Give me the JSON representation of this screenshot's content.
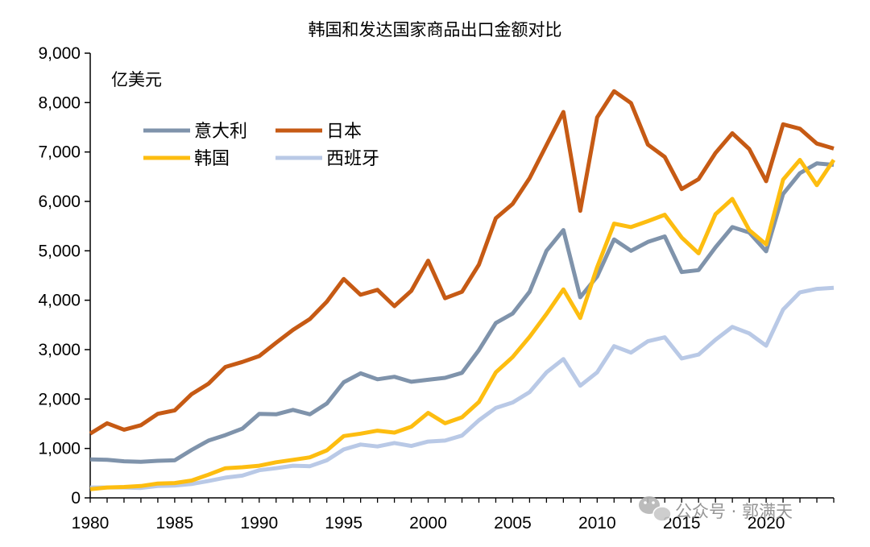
{
  "chart_data": {
    "type": "line",
    "title": "韩国和发达国家商品出口金额对比",
    "unit_label": "亿美元",
    "xlabel": "",
    "ylabel": "",
    "ylim": [
      0,
      9000
    ],
    "xlim": [
      1980,
      2024
    ],
    "yticks": [
      "0",
      "1,000",
      "2,000",
      "3,000",
      "4,000",
      "5,000",
      "6,000",
      "7,000",
      "8,000",
      "9,000"
    ],
    "ytick_values": [
      0,
      1000,
      2000,
      3000,
      4000,
      5000,
      6000,
      7000,
      8000,
      9000
    ],
    "xticks": [
      "1980",
      "1985",
      "1990",
      "1995",
      "2000",
      "2005",
      "2010",
      "2015",
      "2020"
    ],
    "xtick_values": [
      1980,
      1985,
      1990,
      1995,
      2000,
      2005,
      2010,
      2015,
      2020
    ],
    "grid": false,
    "legend_position": "top-left",
    "x": [
      1980,
      1981,
      1982,
      1983,
      1984,
      1985,
      1986,
      1987,
      1988,
      1989,
      1990,
      1991,
      1992,
      1993,
      1994,
      1995,
      1996,
      1997,
      1998,
      1999,
      2000,
      2001,
      2002,
      2003,
      2004,
      2005,
      2006,
      2007,
      2008,
      2009,
      2010,
      2011,
      2012,
      2013,
      2014,
      2015,
      2016,
      2017,
      2018,
      2019,
      2020,
      2021,
      2022,
      2023,
      2024
    ],
    "series": [
      {
        "name": "意大利",
        "color": "#7f93ab",
        "values": [
          780,
          770,
          740,
          730,
          750,
          760,
          970,
          1160,
          1270,
          1400,
          1700,
          1690,
          1780,
          1690,
          1910,
          2340,
          2520,
          2400,
          2450,
          2350,
          2390,
          2430,
          2530,
          2990,
          3540,
          3730,
          4170,
          5000,
          5420,
          4060,
          4480,
          5230,
          5000,
          5180,
          5290,
          4570,
          4610,
          5070,
          5480,
          5370,
          4990,
          6150,
          6570,
          6770,
          6740
        ]
      },
      {
        "name": "日本",
        "color": "#c65a14",
        "values": [
          1300,
          1510,
          1380,
          1470,
          1700,
          1770,
          2100,
          2310,
          2650,
          2750,
          2870,
          3140,
          3400,
          3620,
          3970,
          4430,
          4110,
          4210,
          3880,
          4190,
          4800,
          4040,
          4170,
          4720,
          5660,
          5950,
          6470,
          7140,
          7810,
          5810,
          7700,
          8230,
          7990,
          7150,
          6900,
          6250,
          6450,
          6980,
          7380,
          7060,
          6410,
          7560,
          7470,
          7170,
          7070
        ]
      },
      {
        "name": "韩国",
        "color": "#fdbd10",
        "values": [
          175,
          210,
          220,
          240,
          290,
          300,
          350,
          470,
          600,
          620,
          650,
          720,
          770,
          820,
          960,
          1250,
          1300,
          1360,
          1320,
          1440,
          1720,
          1510,
          1630,
          1940,
          2540,
          2850,
          3260,
          3720,
          4220,
          3640,
          4670,
          5550,
          5480,
          5600,
          5730,
          5270,
          4950,
          5740,
          6050,
          5420,
          5130,
          6440,
          6840,
          6330,
          6840
        ]
      },
      {
        "name": "西班牙",
        "color": "#b9c9e6",
        "values": [
          210,
          210,
          210,
          200,
          240,
          250,
          280,
          340,
          410,
          450,
          560,
          600,
          650,
          640,
          760,
          980,
          1080,
          1040,
          1110,
          1050,
          1140,
          1160,
          1260,
          1570,
          1820,
          1930,
          2140,
          2540,
          2810,
          2270,
          2540,
          3070,
          2940,
          3170,
          3250,
          2820,
          2900,
          3200,
          3460,
          3330,
          3080,
          3810,
          4160,
          4230,
          4250
        ]
      }
    ]
  },
  "watermark": {
    "text": "公众号 · 郭满天",
    "icon": "wechat-icon"
  }
}
